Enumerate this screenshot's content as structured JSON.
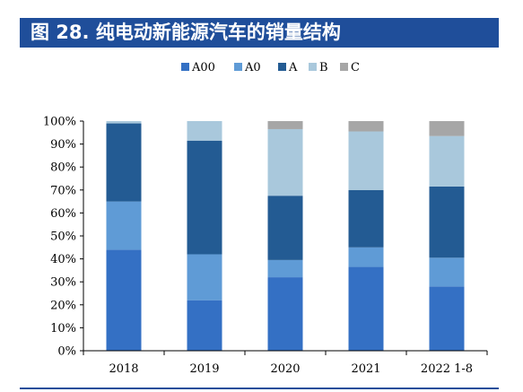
{
  "header": {
    "title": "图 28. 纯电动新能源汽车的销量结构"
  },
  "chart_data": {
    "type": "bar",
    "stacked": true,
    "title": "",
    "xlabel": "",
    "ylabel": "",
    "categories": [
      "2018",
      "2019",
      "2020",
      "2021",
      "2022 1-8"
    ],
    "ylim": [
      0,
      100
    ],
    "yticks": [
      "0%",
      "10%",
      "20%",
      "30%",
      "40%",
      "50%",
      "60%",
      "70%",
      "80%",
      "90%",
      "100%"
    ],
    "grid": false,
    "legend_position": "top-center",
    "series": [
      {
        "name": "A00",
        "color": "#3470c4",
        "values": [
          44,
          22,
          32,
          36.5,
          28
        ]
      },
      {
        "name": "A0",
        "color": "#5f9bd6",
        "values": [
          21,
          20,
          7.5,
          8.5,
          12.5
        ]
      },
      {
        "name": "A",
        "color": "#235b93",
        "values": [
          34,
          49.5,
          28,
          25,
          31
        ]
      },
      {
        "name": "B",
        "color": "#a9c8dc",
        "values": [
          1,
          8.5,
          29,
          25.5,
          22
        ]
      },
      {
        "name": "C",
        "color": "#a6a6a6",
        "values": [
          0,
          0,
          3.5,
          4.5,
          6.5
        ]
      }
    ]
  }
}
